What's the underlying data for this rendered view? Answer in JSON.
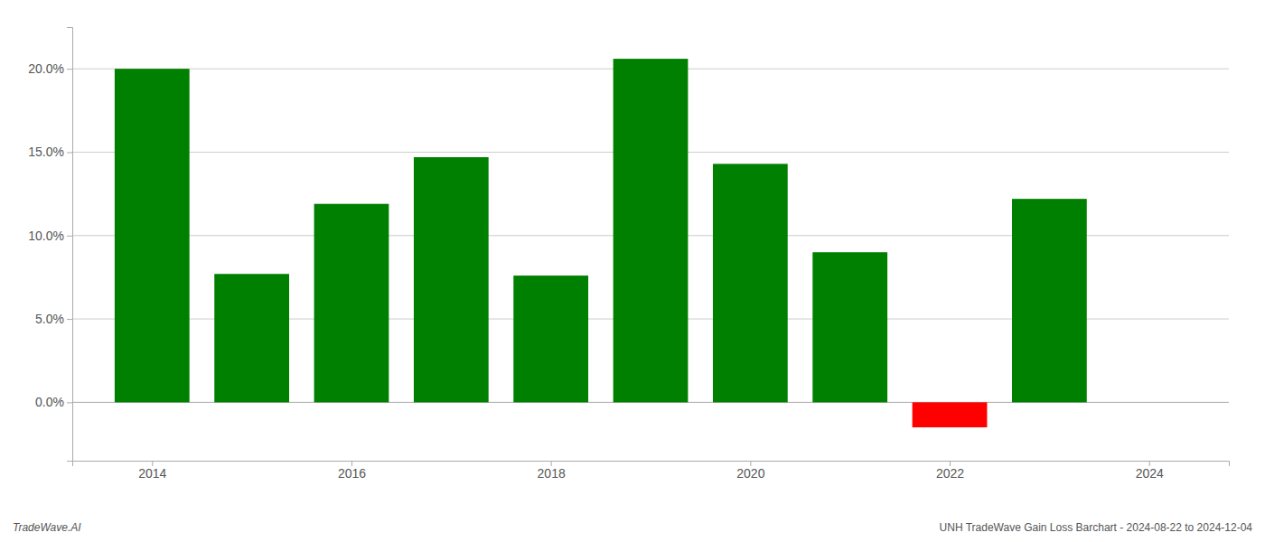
{
  "chart_data": {
    "type": "bar",
    "x": [
      2014,
      2015,
      2016,
      2017,
      2018,
      2019,
      2020,
      2021,
      2022,
      2023
    ],
    "values": [
      0.2,
      0.077,
      0.119,
      0.147,
      0.076,
      0.206,
      0.143,
      0.09,
      -0.015,
      0.122
    ],
    "colors": [
      "#008000",
      "#008000",
      "#008000",
      "#008000",
      "#008000",
      "#008000",
      "#008000",
      "#008000",
      "#ff0000",
      "#008000"
    ],
    "xlim": [
      2013.2,
      2024.8
    ],
    "xticks": [
      2014,
      2016,
      2018,
      2020,
      2022,
      2024
    ],
    "ylim": [
      -0.035,
      0.225
    ],
    "yticks": [
      {
        "value": 0.0,
        "label": "0.0%"
      },
      {
        "value": 0.05,
        "label": "5.0%"
      },
      {
        "value": 0.1,
        "label": "10.0%"
      },
      {
        "value": 0.15,
        "label": "15.0%"
      },
      {
        "value": 0.2,
        "label": "20.0%"
      }
    ],
    "grid": true,
    "annotations": [
      "TradeWave.AI",
      "UNH TradeWave Gain Loss Barchart - 2024-08-22 to 2024-12-04"
    ]
  }
}
